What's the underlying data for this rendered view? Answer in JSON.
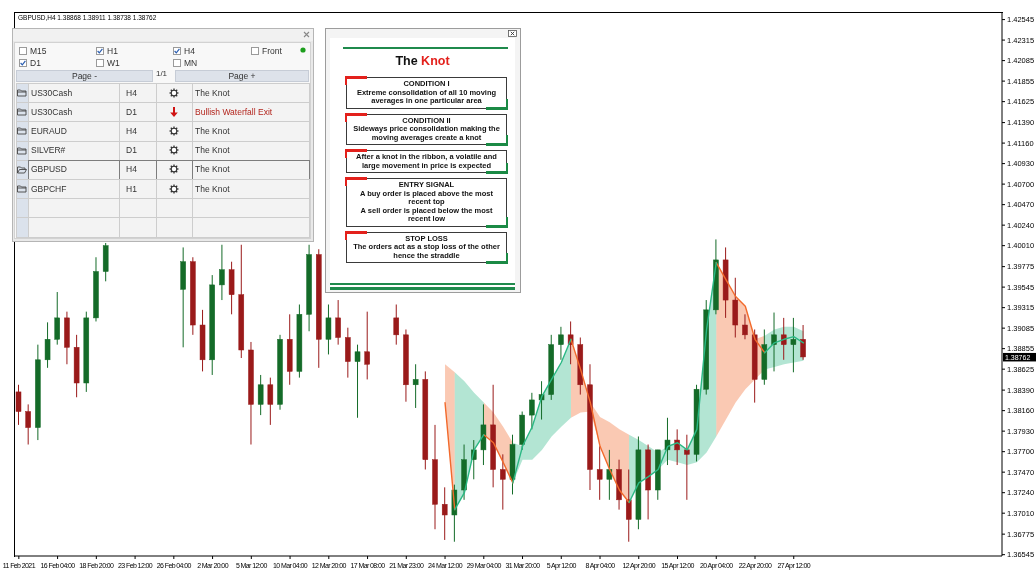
{
  "chart_data": {
    "type": "candlestick",
    "title": "GBPUSD,H4 1.38868 1.38911 1.38738 1.38762",
    "categories": [
      "11 Feb 2021",
      null,
      null,
      null,
      "16 Feb 04:00",
      null,
      null,
      null,
      "18 Feb 20:00",
      null,
      null,
      null,
      "23 Feb 12:00",
      null,
      null,
      null,
      "26 Feb 04:00",
      null,
      null,
      null,
      "2 Mar 20:00",
      null,
      null,
      null,
      "5 Mar 12:00",
      null,
      null,
      null,
      "10 Mar 04:00",
      null,
      null,
      null,
      "12 Mar 20:00",
      null,
      null,
      null,
      "17 Mar 08:00",
      null,
      null,
      null,
      "21 Mar 23:00",
      null,
      null,
      null,
      "24 Mar 12:00",
      null,
      null,
      null,
      "29 Mar 04:00",
      null,
      null,
      null,
      "31 Mar 20:00",
      null,
      null,
      null,
      "5 Apr 12:00",
      null,
      null,
      null,
      "8 Apr 04:00",
      null,
      null,
      null,
      "12 Apr 20:00",
      null,
      null,
      null,
      "15 Apr 12:00",
      null,
      null,
      null,
      "20 Apr 04:00",
      null,
      null,
      null,
      "22 Apr 20:00",
      null,
      null,
      null,
      "27 Apr 12:00",
      null,
      null,
      null,
      null,
      null,
      null,
      null,
      null,
      null,
      null,
      null,
      null,
      null,
      null,
      null,
      null,
      null,
      null,
      null,
      null,
      null
    ],
    "ohlc": [
      [
        1.3837,
        1.3845,
        1.38,
        1.3815
      ],
      [
        1.3815,
        1.3823,
        1.3778,
        1.3797
      ],
      [
        1.3797,
        1.389,
        1.3783,
        1.3873
      ],
      [
        1.3873,
        1.3915,
        1.3864,
        1.3896
      ],
      [
        1.3896,
        1.3949,
        1.389,
        1.392
      ],
      [
        1.392,
        1.3927,
        1.3868,
        1.3887
      ],
      [
        1.3887,
        1.3901,
        1.3831,
        1.3847
      ],
      [
        1.3847,
        1.3927,
        1.3837,
        1.392
      ],
      [
        1.392,
        1.3988,
        1.3916,
        1.3972
      ],
      [
        1.3972,
        1.4004,
        1.3961,
        1.4001
      ],
      null,
      null,
      null,
      null,
      null,
      null,
      null,
      [
        1.3952,
        1.3999,
        1.3887,
        1.3983
      ],
      [
        1.3983,
        1.3988,
        1.3901,
        1.3912
      ],
      [
        1.3912,
        1.3929,
        1.386,
        1.3873
      ],
      [
        1.3873,
        1.3968,
        1.3856,
        1.3957
      ],
      [
        1.3957,
        1.4002,
        1.394,
        1.3974
      ],
      [
        1.3974,
        1.3983,
        1.3924,
        1.3946
      ],
      [
        1.3946,
        1.4002,
        1.3875,
        1.3884
      ],
      [
        1.3884,
        1.3893,
        1.3778,
        1.3823
      ],
      [
        1.3823,
        1.3856,
        1.3811,
        1.3845
      ],
      [
        1.3845,
        1.3853,
        1.38,
        1.3823
      ],
      [
        1.3823,
        1.3901,
        1.3817,
        1.3896
      ],
      [
        1.3896,
        1.3924,
        1.3845,
        1.386
      ],
      [
        1.386,
        1.3935,
        1.3853,
        1.3924
      ],
      [
        1.3924,
        1.4002,
        1.3905,
        1.3991
      ],
      [
        1.3991,
        1.3997,
        1.3864,
        1.3896
      ],
      [
        1.3896,
        1.3935,
        1.3879,
        1.392
      ],
      [
        1.392,
        1.394,
        1.389,
        1.3898
      ],
      [
        1.3898,
        1.3909,
        1.3853,
        1.3871
      ],
      [
        1.3871,
        1.389,
        1.3808,
        1.3882
      ],
      [
        1.3882,
        1.3927,
        1.3851,
        1.3868
      ],
      null,
      null,
      [
        1.392,
        1.3935,
        1.389,
        1.3901
      ],
      [
        1.3901,
        1.3907,
        1.3826,
        1.3845
      ],
      [
        1.3845,
        1.3868,
        1.3819,
        1.3851
      ],
      [
        1.3851,
        1.386,
        1.375,
        1.3761
      ],
      [
        1.3761,
        1.38,
        1.3683,
        1.3711
      ],
      [
        1.3711,
        1.373,
        1.3671,
        1.3699
      ],
      [
        1.3699,
        1.3733,
        1.3669,
        1.3727
      ],
      [
        1.3727,
        1.3778,
        1.3716,
        1.3761
      ],
      [
        1.3761,
        1.3783,
        1.3739,
        1.3772
      ],
      [
        1.3772,
        1.3823,
        1.3755,
        1.38
      ],
      [
        1.38,
        1.3845,
        1.373,
        1.375
      ],
      [
        1.375,
        1.3767,
        1.3705,
        1.3739
      ],
      [
        1.3739,
        1.3789,
        1.3722,
        1.3778
      ],
      [
        1.3778,
        1.3815,
        1.3772,
        1.3811
      ],
      [
        1.3811,
        1.3836,
        1.3795,
        1.3828
      ],
      [
        1.3828,
        1.3849,
        1.3806,
        1.3834
      ],
      [
        1.3834,
        1.3901,
        1.3828,
        1.389
      ],
      [
        1.389,
        1.391,
        1.3873,
        1.3901
      ],
      [
        1.3901,
        1.3916,
        1.3868,
        1.389
      ],
      [
        1.389,
        1.3898,
        1.3834,
        1.3845
      ],
      [
        1.3845,
        1.3868,
        1.3727,
        1.375
      ],
      [
        1.375,
        1.3776,
        1.3716,
        1.3739
      ],
      [
        1.3739,
        1.3772,
        1.3716,
        1.375
      ],
      [
        1.375,
        1.3761,
        1.3705,
        1.3716
      ],
      [
        1.3716,
        1.375,
        1.3669,
        1.3694
      ],
      [
        1.3694,
        1.3787,
        1.3683,
        1.3772
      ],
      [
        1.3772,
        1.3778,
        1.3694,
        1.3727
      ],
      [
        1.3727,
        1.3772,
        1.3716,
        1.3772
      ],
      [
        1.3772,
        1.3808,
        1.3755,
        1.3783
      ],
      [
        1.3783,
        1.3795,
        1.3755,
        1.3772
      ],
      [
        1.3772,
        1.3789,
        1.3716,
        1.3767
      ],
      [
        1.3767,
        1.3845,
        1.3759,
        1.384
      ],
      [
        1.384,
        1.394,
        1.3834,
        1.3929
      ],
      [
        1.3929,
        1.4008,
        1.3924,
        1.3985
      ],
      [
        1.3985,
        1.3999,
        1.392,
        1.394
      ],
      [
        1.394,
        1.3965,
        1.3898,
        1.3912
      ],
      [
        1.3912,
        1.3924,
        1.3896,
        1.3901
      ],
      [
        1.3901,
        1.3907,
        1.3825,
        1.3851
      ],
      [
        1.3851,
        1.3907,
        1.3845,
        1.389
      ],
      [
        1.389,
        1.3926,
        1.386,
        1.3901
      ],
      [
        1.3901,
        1.392,
        1.3873,
        1.389
      ],
      [
        1.389,
        1.392,
        1.3859,
        1.3896
      ],
      [
        1.3896,
        1.3912,
        1.3873,
        1.38762
      ],
      null,
      null,
      null,
      null,
      null,
      null,
      null,
      null,
      null,
      null,
      null,
      null,
      null,
      null,
      null,
      null,
      null,
      null,
      null,
      null
    ],
    "colors": [
      "#9a1a1a",
      "#9a1a1a",
      "#146b28",
      "#146b28",
      "#146b28",
      "#9a1a1a",
      "#9a1a1a",
      "#146b28",
      "#146b28",
      "#146b28",
      null,
      null,
      null,
      null,
      null,
      null,
      null,
      "#146b28",
      "#9a1a1a",
      "#9a1a1a",
      "#146b28",
      "#146b28",
      "#9a1a1a",
      "#9a1a1a",
      "#9a1a1a",
      "#146b28",
      "#9a1a1a",
      "#146b28",
      "#9a1a1a",
      "#146b28",
      "#146b28",
      "#9a1a1a",
      "#146b28",
      "#9a1a1a",
      "#9a1a1a",
      "#146b28",
      "#9a1a1a",
      null,
      null,
      "#9a1a1a",
      "#9a1a1a",
      "#146b28",
      "#9a1a1a",
      "#9a1a1a",
      "#9a1a1a",
      "#146b28",
      "#146b28",
      "#146b28",
      "#146b28",
      "#9a1a1a",
      "#9a1a1a",
      "#146b28",
      "#146b28",
      "#146b28",
      "#146b28",
      "#146b28",
      "#146b28",
      "#9a1a1a",
      "#9a1a1a",
      "#9a1a1a",
      "#9a1a1a",
      "#146b28",
      "#9a1a1a",
      "#9a1a1a",
      "#146b28",
      "#9a1a1a",
      "#146b28",
      "#146b28",
      "#9a1a1a",
      "#9a1a1a",
      "#146b28",
      "#146b28",
      "#146b28",
      "#9a1a1a",
      "#9a1a1a",
      "#9a1a1a",
      "#9a1a1a",
      "#146b28",
      "#146b28",
      "#9a1a1a",
      "#146b28",
      "#9a1a1a",
      null,
      null,
      null,
      null,
      null,
      null,
      null,
      null,
      null,
      null,
      null,
      null,
      null,
      null,
      null,
      null,
      null,
      null,
      null,
      null
    ],
    "series": [
      {
        "type": "line",
        "color": "#f26a2c",
        "values": [
          null,
          null,
          null,
          null,
          null,
          null,
          null,
          null,
          null,
          null,
          null,
          null,
          null,
          null,
          null,
          null,
          null,
          null,
          null,
          null,
          null,
          null,
          null,
          null,
          null,
          null,
          null,
          null,
          null,
          null,
          null,
          null,
          null,
          null,
          null,
          null,
          null,
          null,
          null,
          null,
          null,
          null,
          null,
          null,
          1.3825,
          1.3705,
          null,
          null,
          1.3789,
          1.378,
          1.3758,
          1.3735,
          null,
          null,
          null,
          null,
          null,
          1.3896,
          1.3862,
          1.3825,
          1.3776,
          1.375,
          1.3727,
          1.3713,
          null,
          null,
          null,
          null,
          null,
          null,
          null,
          null,
          1.3982,
          1.3963,
          1.3944,
          1.3933,
          1.3896,
          1.3881,
          null,
          null,
          null,
          null,
          null,
          null,
          null,
          null,
          null,
          null,
          null,
          null,
          null,
          null,
          null,
          null,
          null,
          null,
          null,
          null,
          null,
          null,
          null,
          null
        ],
        "lower": [
          null,
          null,
          null,
          null,
          null,
          null,
          null,
          null,
          null,
          null,
          null,
          null,
          null,
          null,
          null,
          null,
          null,
          null,
          null,
          null,
          null,
          null,
          null,
          null,
          null,
          null,
          null,
          null,
          null,
          null,
          null,
          null,
          null,
          null,
          null,
          null,
          null,
          null,
          null,
          null,
          null,
          null,
          null,
          null,
          1.3825,
          1.3705,
          null,
          null,
          1.3789,
          1.378,
          1.3758,
          1.3735,
          null,
          null,
          null,
          null,
          null,
          1.3808,
          1.3814,
          1.3815,
          1.3776,
          1.375,
          1.3727,
          1.3713,
          null,
          null,
          null,
          null,
          null,
          null,
          null,
          null,
          1.3787,
          1.3806,
          1.3825,
          1.384,
          1.3851,
          1.3862,
          null,
          null,
          null,
          null,
          null,
          null,
          null,
          null,
          null,
          null,
          null,
          null,
          null,
          null,
          null,
          null,
          null,
          null,
          null,
          null,
          null,
          null,
          null,
          null
        ],
        "upper": [
          null,
          null,
          null,
          null,
          null,
          null,
          null,
          null,
          null,
          null,
          null,
          null,
          null,
          null,
          null,
          null,
          null,
          null,
          null,
          null,
          null,
          null,
          null,
          null,
          null,
          null,
          null,
          null,
          null,
          null,
          null,
          null,
          null,
          null,
          null,
          null,
          null,
          null,
          null,
          null,
          null,
          null,
          null,
          null,
          1.3868,
          1.3859,
          null,
          null,
          1.3825,
          1.3814,
          1.3798,
          1.378,
          null,
          null,
          null,
          null,
          null,
          1.3896,
          1.3862,
          1.3825,
          1.3809,
          1.3803,
          1.3795,
          1.3789,
          null,
          null,
          null,
          null,
          null,
          null,
          null,
          null,
          1.3982,
          1.3963,
          1.3944,
          1.3933,
          1.3896,
          1.39,
          null,
          null,
          null,
          null,
          null,
          null,
          null,
          null,
          null,
          null,
          null,
          null,
          null,
          null,
          null,
          null,
          null,
          null,
          null,
          null,
          null,
          null,
          null,
          null
        ]
      },
      {
        "type": "line",
        "color": "#2bb884",
        "values": [
          null,
          null,
          null,
          null,
          null,
          null,
          null,
          null,
          null,
          null,
          null,
          null,
          null,
          null,
          null,
          null,
          null,
          null,
          null,
          null,
          null,
          null,
          null,
          null,
          null,
          null,
          null,
          null,
          null,
          null,
          null,
          null,
          null,
          null,
          null,
          null,
          null,
          null,
          null,
          null,
          null,
          null,
          null,
          null,
          null,
          1.3705,
          1.3724,
          1.3772,
          1.3789,
          null,
          null,
          1.3735,
          1.3776,
          1.3798,
          1.3832,
          1.3851,
          1.387,
          1.3896,
          null,
          null,
          null,
          null,
          null,
          1.3713,
          1.3735,
          1.3742,
          1.375,
          1.3776,
          1.378,
          1.3772,
          1.3795,
          1.3907,
          1.3982,
          null,
          null,
          null,
          null,
          1.3881,
          1.3892,
          1.3896,
          1.3899,
          1.3892,
          null,
          null,
          null,
          null,
          null,
          null,
          null,
          null,
          null,
          null,
          null,
          null,
          null,
          null,
          null,
          null,
          null,
          null,
          null,
          null
        ],
        "lower": [
          null,
          null,
          null,
          null,
          null,
          null,
          null,
          null,
          null,
          null,
          null,
          null,
          null,
          null,
          null,
          null,
          null,
          null,
          null,
          null,
          null,
          null,
          null,
          null,
          null,
          null,
          null,
          null,
          null,
          null,
          null,
          null,
          null,
          null,
          null,
          null,
          null,
          null,
          null,
          null,
          null,
          null,
          null,
          null,
          null,
          1.3705,
          1.3724,
          1.3772,
          1.3789,
          null,
          null,
          1.3735,
          1.3761,
          1.3761,
          1.3772,
          1.3787,
          1.3798,
          1.3808,
          null,
          null,
          null,
          null,
          null,
          1.3713,
          1.3735,
          1.3742,
          1.375,
          1.3761,
          1.3758,
          1.3755,
          1.3758,
          1.3769,
          1.3787,
          null,
          null,
          null,
          null,
          1.3862,
          1.3865,
          1.3868,
          1.387,
          1.3872,
          null,
          null,
          null,
          null,
          null,
          null,
          null,
          null,
          null,
          null,
          null,
          null,
          null,
          null,
          null,
          null,
          null,
          null,
          null,
          null
        ],
        "upper": [
          null,
          null,
          null,
          null,
          null,
          null,
          null,
          null,
          null,
          null,
          null,
          null,
          null,
          null,
          null,
          null,
          null,
          null,
          null,
          null,
          null,
          null,
          null,
          null,
          null,
          null,
          null,
          null,
          null,
          null,
          null,
          null,
          null,
          null,
          null,
          null,
          null,
          null,
          null,
          null,
          null,
          null,
          null,
          null,
          null,
          1.3859,
          1.3849,
          1.3836,
          1.3825,
          null,
          null,
          1.378,
          1.3776,
          1.3798,
          1.3832,
          1.3851,
          1.387,
          1.3896,
          null,
          null,
          null,
          null,
          null,
          1.3789,
          1.3783,
          1.3776,
          1.3769,
          1.3776,
          1.378,
          1.3772,
          1.3795,
          1.3907,
          1.3982,
          null,
          null,
          null,
          null,
          1.39,
          1.3907,
          1.391,
          1.391,
          1.3905,
          null,
          null,
          null,
          null,
          null,
          null,
          null,
          null,
          null,
          null,
          null,
          null,
          null,
          null,
          null,
          null,
          null,
          null,
          null,
          null
        ]
      }
    ],
    "ylim": [
      1.3653,
      1.4263
    ],
    "yticks": [
      1.42545,
      1.42315,
      1.42085,
      1.41855,
      1.41625,
      {
        "value": 1.4139,
        "label": "1.41390"
      },
      {
        "value": 1.4116,
        "label": "1.41160"
      },
      {
        "value": 1.4093,
        "label": "1.40930"
      },
      {
        "value": 1.407,
        "label": "1.40700"
      },
      {
        "value": 1.4047,
        "label": "1.40470"
      },
      {
        "value": 1.4024,
        "label": "1.40240"
      },
      {
        "value": 1.4001,
        "label": "1.40010"
      },
      1.39775,
      1.39545,
      1.39315,
      1.39085,
      1.38855,
      1.38625,
      {
        "value": 1.3839,
        "label": "1.38390"
      },
      {
        "value": 1.3816,
        "label": "1.38160"
      },
      {
        "value": 1.3793,
        "label": "1.37930"
      },
      {
        "value": 1.377,
        "label": "1.37700"
      },
      {
        "value": 1.3747,
        "label": "1.37470"
      },
      {
        "value": 1.3724,
        "label": "1.37240"
      },
      {
        "value": 1.3701,
        "label": "1.37010"
      },
      1.36775,
      1.36545
    ],
    "annotations": [
      "M15",
      "H1",
      "H4",
      "Front",
      "D1",
      "W1",
      "MN",
      "Page -",
      "1/1",
      "Page +",
      "US30Cash",
      "H4",
      "The Knot",
      "US30Cash",
      "D1",
      "Bullish Waterfall Exit",
      "EURAUD",
      "H4",
      "The Knot",
      "SILVER#",
      "D1",
      "The Knot",
      "GBPUSD",
      "H4",
      "The Knot",
      "GBPCHF",
      "H1",
      "The Knot",
      "The Knot",
      "CONDITION I",
      "Extreme consolidation of all 10 moving averages in one particular area",
      "CONDITION II",
      "Sideways price consolidation making the moving averages create a knot",
      "After a knot in the ribbon, a volatile and large movement in price is expected",
      "ENTRY SIGNAL",
      "A buy order is placed above the most recent top",
      "A sell order is placed below the most recent low",
      "STOP LOSS",
      "The orders act as a stop loss of the other hence the straddle",
      "1.38762"
    ]
  }
}
